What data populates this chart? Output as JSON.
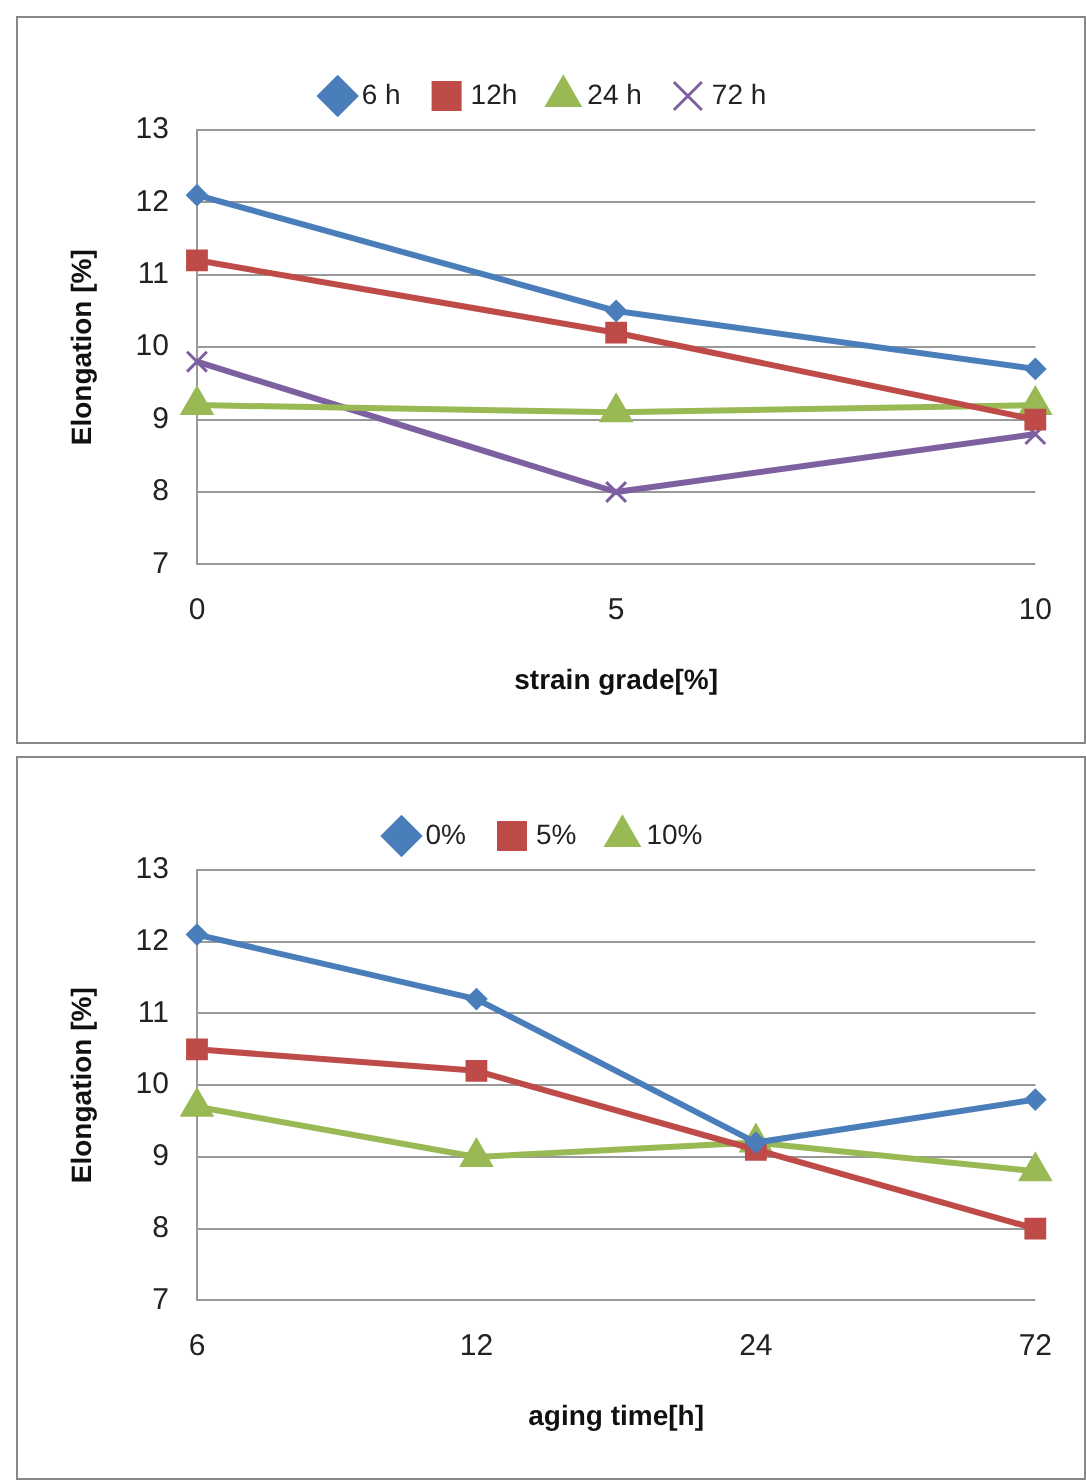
{
  "chart_data": [
    {
      "type": "line",
      "xlabel": "strain grade[%]",
      "ylabel": "Elongation [%]",
      "categories": [
        "0",
        "5",
        "10"
      ],
      "ylim": [
        7,
        13
      ],
      "yticks": [
        7,
        8,
        9,
        10,
        11,
        12,
        13
      ],
      "grid": "y",
      "legend": "top",
      "series": [
        {
          "name": "6 h",
          "color": "#4a7ebb",
          "marker": "diamond",
          "values": [
            12.1,
            10.5,
            9.7
          ]
        },
        {
          "name": "12h",
          "color": "#be4b48",
          "marker": "square",
          "values": [
            11.2,
            10.2,
            9.0
          ]
        },
        {
          "name": "24 h",
          "color": "#98b954",
          "marker": "triangle",
          "values": [
            9.2,
            9.1,
            9.2
          ]
        },
        {
          "name": "72 h",
          "color": "#7d60a0",
          "marker": "cross",
          "values": [
            9.8,
            8.0,
            8.8
          ]
        }
      ]
    },
    {
      "type": "line",
      "xlabel": "aging time[h]",
      "ylabel": "Elongation [%]",
      "categories": [
        "6",
        "12",
        "24",
        "72"
      ],
      "ylim": [
        7,
        13
      ],
      "yticks": [
        7,
        8,
        9,
        10,
        11,
        12,
        13
      ],
      "grid": "y",
      "legend": "top",
      "series": [
        {
          "name": "0%",
          "color": "#4a7ebb",
          "marker": "diamond",
          "values": [
            12.1,
            11.2,
            9.2,
            9.8
          ]
        },
        {
          "name": "5%",
          "color": "#be4b48",
          "marker": "square",
          "values": [
            10.5,
            10.2,
            9.1,
            8.0
          ]
        },
        {
          "name": "10%",
          "color": "#98b954",
          "marker": "triangle",
          "values": [
            9.7,
            9.0,
            9.2,
            8.8
          ]
        }
      ]
    }
  ]
}
